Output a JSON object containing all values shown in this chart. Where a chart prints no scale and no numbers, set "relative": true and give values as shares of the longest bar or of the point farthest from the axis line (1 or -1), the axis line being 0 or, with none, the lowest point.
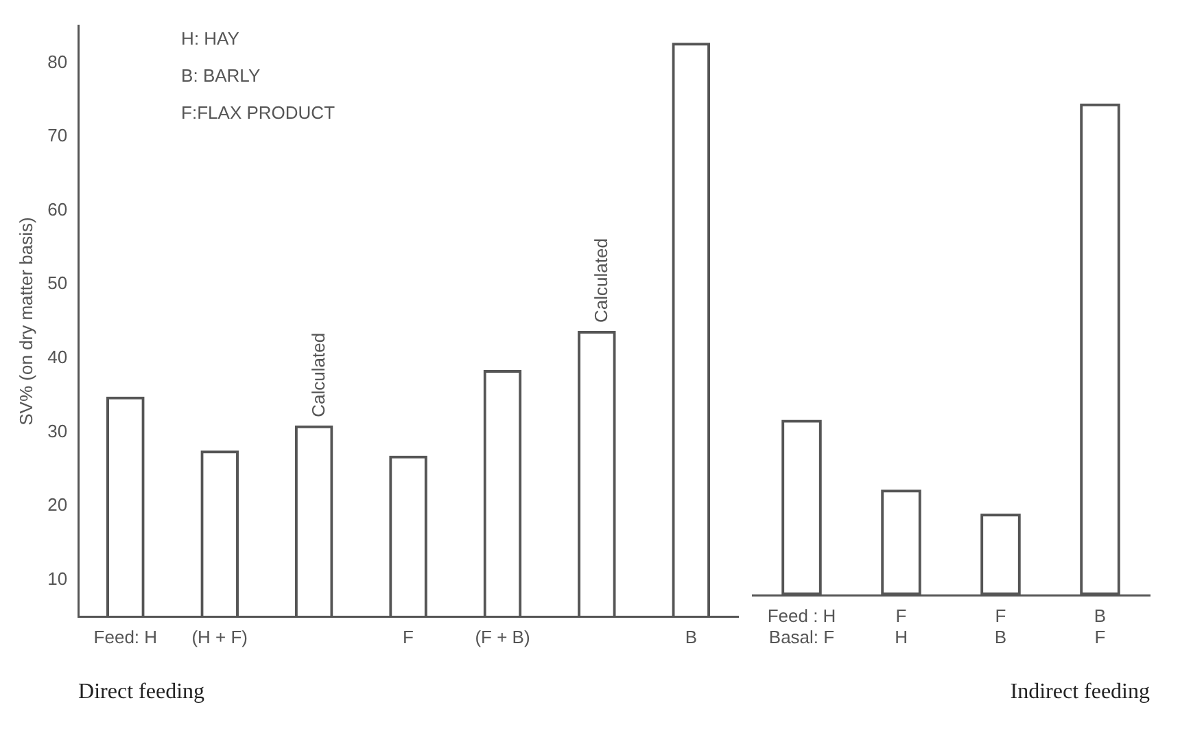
{
  "chart_data": [
    {
      "type": "bar",
      "categories": [
        "Feed: H",
        "(H + F)",
        null,
        "F",
        "(F + B)",
        null,
        "B"
      ],
      "values": [
        34.8,
        27.5,
        30.9,
        26.8,
        38.4,
        43.7,
        82.7
      ],
      "color": "#555555",
      "ylabel": "SV% (on dry matter basis)",
      "xlabel": "Direct feeding",
      "ylim": [
        5,
        85
      ],
      "yticks": [
        10,
        20,
        30,
        40,
        50,
        60,
        70,
        80
      ],
      "grid": false,
      "legend": false,
      "annotations": [
        "Calculated",
        "Calculated",
        "H: HAY",
        "B: BARLY",
        "F:FLAX PRODUCT"
      ]
    },
    {
      "type": "bar",
      "categories": [
        "Feed : H\nBasal: F",
        "F\nH",
        "F\nB",
        "B\nF"
      ],
      "values": [
        0.357,
        0.215,
        0.166,
        1
      ],
      "relative": true,
      "color": "#555555",
      "xlabel": "Indirect feeding",
      "grid": false,
      "legend": false
    }
  ]
}
